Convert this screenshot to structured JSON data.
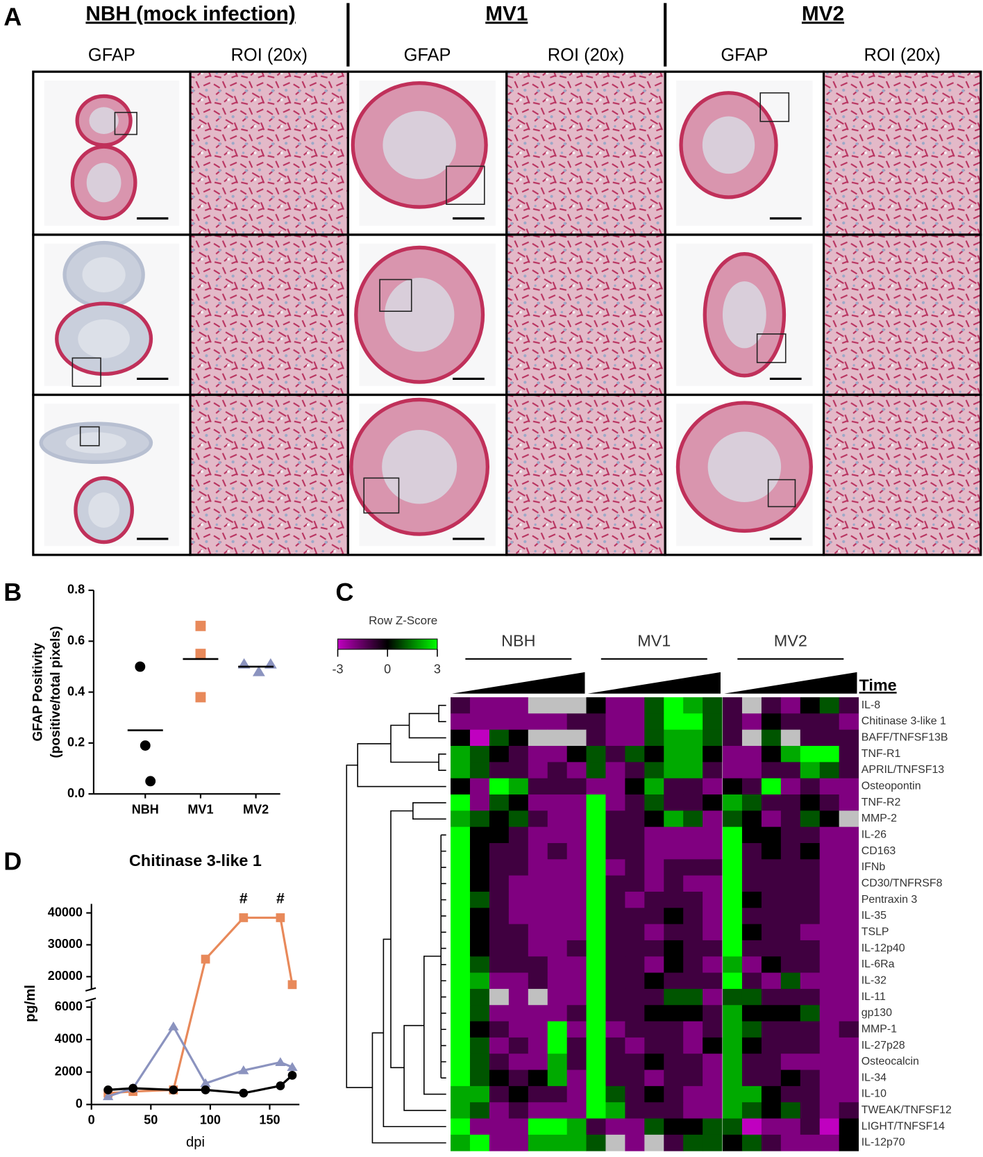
{
  "panel_labels": [
    "A",
    "B",
    "C",
    "D"
  ],
  "figure_a": {
    "groups": [
      {
        "title": "NBH (mock infection)",
        "columns": [
          "GFAP",
          "ROI (20x)"
        ]
      },
      {
        "title": "MV1",
        "columns": [
          "GFAP",
          "ROI (20x)"
        ]
      },
      {
        "title": "MV2",
        "columns": [
          "GFAP",
          "ROI (20x)"
        ]
      }
    ]
  },
  "chart_data": [
    {
      "type": "dot",
      "y_label": [
        "GFAP Positivity",
        "(positive/total pixels)"
      ],
      "categories": [
        "NBH",
        "MV1",
        "MV2"
      ],
      "groups": [
        {
          "color": "#000000",
          "marker": "circle",
          "values": [
            0.5,
            0.19,
            0.05
          ],
          "mean": 0.25
        },
        {
          "color": "#e8895a",
          "marker": "square",
          "values": [
            0.66,
            0.55,
            0.38
          ],
          "mean": 0.53
        },
        {
          "color": "#8b93bf",
          "marker": "triangle",
          "values": [
            0.51,
            0.48,
            0.51
          ],
          "mean": 0.5
        }
      ],
      "ylim": [
        0,
        0.8
      ],
      "yticks": [
        {
          "value": 0,
          "label": "0.0"
        },
        {
          "value": 0.2,
          "label": "0.2"
        },
        {
          "value": 0.4,
          "label": "0.4"
        },
        {
          "value": 0.6,
          "label": "0.6"
        },
        {
          "value": 0.8,
          "label": "0.8"
        }
      ]
    },
    {
      "type": "heatmap",
      "time_label": "Time",
      "column_groups": [
        "NBH",
        "MV1",
        "MV2"
      ],
      "colorbar": {
        "title": "Row Z-Score",
        "lim": [
          -3,
          3
        ],
        "ticks": [
          -3,
          0,
          3
        ],
        "colors": [
          "#c000c0",
          "#000000",
          "#00ff00"
        ],
        "missing_color": "#c0c0c0"
      },
      "rows": [
        "IL-8",
        "Chitinase 3-like 1",
        "BAFF/TNFSF13B",
        "TNF-R1",
        "APRIL/TNFSF13",
        "Osteopontin",
        "TNF-R2",
        "MMP-2",
        "IL-26",
        "CD163",
        "IFNb",
        "CD30/TNFRSF8",
        "Pentraxin 3",
        "IL-35",
        "TSLP",
        "IL-12p40",
        "IL-6Ra",
        "IL-32",
        "IL-11",
        "gp130",
        "MMP-1",
        "IL-27p28",
        "Osteocalcin",
        "IL-34",
        "IL-10",
        "TWEAK/TNFSF12",
        "LIGHT/TNFSF14",
        "IL-12p70"
      ],
      "values": [
        [
          -1,
          -2,
          -2,
          -2,
          null,
          null,
          null,
          0,
          -2,
          -2,
          1,
          3,
          2,
          1,
          -1,
          null,
          -1,
          -2,
          0,
          1,
          -1
        ],
        [
          -2,
          -2,
          -2,
          -2,
          -2,
          -2,
          -1,
          -1,
          -2,
          -2,
          1,
          3,
          3,
          1,
          -1,
          -2,
          0,
          -1,
          -1,
          -1,
          -2
        ],
        [
          0,
          -3,
          1,
          0,
          null,
          null,
          null,
          -1,
          -2,
          -2,
          1,
          2,
          2,
          1,
          -1,
          null,
          1,
          null,
          -1,
          -1,
          -1
        ],
        [
          2,
          1,
          0,
          -1,
          -2,
          -2,
          0,
          1,
          -1,
          1,
          0,
          2,
          2,
          0,
          -2,
          -2,
          0,
          2,
          3,
          3,
          -1
        ],
        [
          2,
          1,
          -1,
          -1,
          -2,
          -1,
          -2,
          1,
          -2,
          -1,
          1,
          2,
          2,
          -1,
          -2,
          -2,
          -1,
          -1,
          2,
          1,
          -1
        ],
        [
          0,
          -2,
          3,
          2,
          -1,
          -1,
          -1,
          -2,
          -2,
          0,
          2,
          -1,
          -1,
          -2,
          0,
          -1,
          3,
          -2,
          -1,
          -2,
          -2
        ],
        [
          3,
          -2,
          1,
          0,
          -2,
          -2,
          -2,
          3,
          -2,
          -1,
          1,
          -1,
          -1,
          0,
          2,
          1,
          -1,
          -1,
          0,
          -1,
          -2
        ],
        [
          2,
          1,
          0,
          1,
          -1,
          -2,
          -2,
          3,
          -1,
          -1,
          0,
          2,
          1,
          -2,
          1,
          0,
          -2,
          -1,
          1,
          0,
          null
        ],
        [
          3,
          0,
          0,
          -1,
          -2,
          -2,
          -2,
          3,
          -1,
          -1,
          -2,
          -2,
          -2,
          -2,
          3,
          0,
          0,
          -1,
          -1,
          -2,
          -2
        ],
        [
          3,
          0,
          -1,
          -1,
          -2,
          -1,
          -2,
          3,
          -1,
          -1,
          -2,
          -2,
          -2,
          -2,
          3,
          -1,
          0,
          -1,
          0,
          -2,
          -2
        ],
        [
          3,
          0,
          -1,
          -1,
          -2,
          -2,
          -2,
          3,
          -2,
          -1,
          -2,
          -1,
          -1,
          -1,
          3,
          -1,
          -1,
          -1,
          -1,
          -2,
          -2
        ],
        [
          3,
          0,
          -1,
          -2,
          -2,
          -2,
          -2,
          3,
          -1,
          -1,
          -2,
          -1,
          -2,
          -2,
          3,
          -1,
          -1,
          -1,
          -1,
          -2,
          -2
        ],
        [
          3,
          1,
          -1,
          -2,
          -2,
          -2,
          -2,
          3,
          -1,
          -2,
          -1,
          -1,
          -1,
          -2,
          3,
          0,
          -1,
          -1,
          -1,
          -2,
          -2
        ],
        [
          3,
          0,
          -1,
          -2,
          -2,
          -2,
          -2,
          3,
          -1,
          -1,
          -1,
          0,
          -1,
          -2,
          3,
          -1,
          -1,
          -1,
          -1,
          -2,
          -2
        ],
        [
          3,
          0,
          -1,
          -1,
          -2,
          -2,
          -2,
          3,
          -1,
          -1,
          -2,
          -1,
          -1,
          -2,
          3,
          0,
          -1,
          -1,
          -2,
          -2,
          -2
        ],
        [
          3,
          0,
          -1,
          -1,
          -2,
          -2,
          -1,
          3,
          -1,
          -1,
          -1,
          0,
          -1,
          -1,
          3,
          -1,
          -1,
          -1,
          -1,
          -2,
          -2
        ],
        [
          3,
          1,
          -1,
          -1,
          -1,
          -2,
          -2,
          3,
          -1,
          -1,
          -2,
          0,
          -1,
          -2,
          2,
          -2,
          0,
          -1,
          -1,
          -2,
          -2
        ],
        [
          3,
          2,
          -2,
          -2,
          -1,
          -2,
          -2,
          3,
          -1,
          -1,
          0,
          -1,
          -1,
          -1,
          3,
          -1,
          -2,
          1,
          -2,
          -2,
          -2
        ],
        [
          3,
          1,
          null,
          -2,
          null,
          -2,
          -2,
          3,
          -1,
          -1,
          -1,
          1,
          1,
          -2,
          1,
          1,
          -1,
          -1,
          -1,
          -2,
          -2
        ],
        [
          3,
          1,
          -2,
          -2,
          -2,
          -2,
          -1,
          3,
          -1,
          -1,
          0,
          0,
          0,
          -1,
          2,
          0,
          0,
          0,
          1,
          -2,
          -2
        ],
        [
          3,
          0,
          -1,
          -2,
          -2,
          3,
          -2,
          3,
          -2,
          -1,
          -1,
          -1,
          -2,
          -1,
          2,
          1,
          -1,
          -1,
          -1,
          -2,
          -1
        ],
        [
          3,
          1,
          -2,
          -1,
          -2,
          3,
          -1,
          3,
          -1,
          -2,
          -1,
          -1,
          -2,
          0,
          2,
          0,
          -1,
          -1,
          -1,
          -2,
          -2
        ],
        [
          3,
          1,
          -1,
          -2,
          -2,
          2,
          -1,
          3,
          -1,
          -1,
          0,
          -1,
          -1,
          -2,
          2,
          -1,
          -1,
          -2,
          -2,
          -2,
          -2
        ],
        [
          3,
          1,
          0,
          -1,
          0,
          2,
          -2,
          3,
          -1,
          -1,
          -2,
          -1,
          -1,
          -2,
          2,
          -1,
          -1,
          0,
          -1,
          -2,
          -2
        ],
        [
          2,
          2,
          -1,
          0,
          -1,
          -1,
          -2,
          3,
          1,
          -1,
          0,
          -1,
          -2,
          -2,
          2,
          2,
          0,
          -1,
          -1,
          -2,
          -2
        ],
        [
          2,
          1,
          -2,
          -1,
          -2,
          -2,
          -2,
          3,
          2,
          -1,
          -1,
          -1,
          -2,
          -2,
          2,
          1,
          0,
          1,
          -1,
          -2,
          -1
        ],
        [
          3,
          -2,
          -2,
          -2,
          3,
          3,
          2,
          -1,
          -2,
          -2,
          1,
          0,
          0,
          1,
          1,
          -3,
          -2,
          -2,
          -1,
          -3,
          0
        ],
        [
          2,
          3,
          -2,
          -2,
          2,
          2,
          2,
          1,
          null,
          -2,
          null,
          -1,
          1,
          1,
          0,
          1,
          -1,
          -2,
          -2,
          -2,
          0
        ]
      ]
    },
    {
      "type": "line",
      "title": "Chitinase 3-like 1",
      "x_label": "dpi",
      "y_label": "pg/ml",
      "x": [
        14,
        35,
        69,
        96,
        128,
        159,
        169
      ],
      "xlim": [
        0,
        175
      ],
      "xticks": [
        0,
        50,
        100,
        150
      ],
      "y_segments": [
        {
          "ylim": [
            0,
            6000
          ],
          "yticks": [
            0,
            2000,
            4000,
            6000
          ]
        },
        {
          "ylim": [
            16000,
            41000
          ],
          "yticks": [
            20000,
            30000,
            40000
          ]
        }
      ],
      "series": [
        {
          "color": "#e8895a",
          "marker": "square",
          "values": [
            700,
            800,
            900,
            25500,
            38500,
            38500,
            17500
          ]
        },
        {
          "color": "#8b93bf",
          "marker": "triangle",
          "values": [
            500,
            1000,
            4800,
            1300,
            2100,
            2600,
            2300
          ]
        },
        {
          "color": "#000000",
          "marker": "circle",
          "values": [
            900,
            1000,
            900,
            900,
            700,
            1150,
            1800
          ]
        }
      ],
      "annotations": [
        {
          "x": 128,
          "text": "#"
        },
        {
          "x": 159,
          "text": "#"
        }
      ]
    }
  ]
}
